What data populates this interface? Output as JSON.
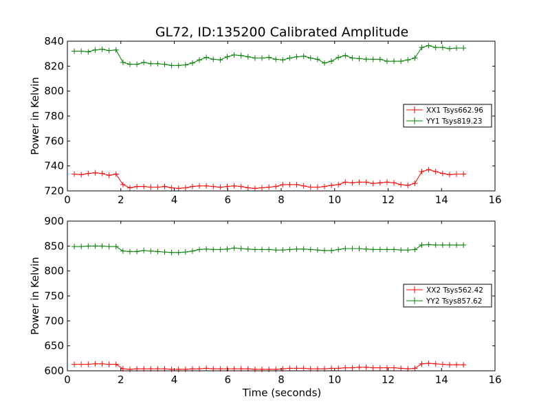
{
  "figure": {
    "title": "GL72, ID:135200 Calibrated Amplitude",
    "xlabel": "Time (seconds)"
  },
  "chart_data": [
    {
      "type": "line",
      "title": "GL72, ID:135200 Calibrated Amplitude",
      "xlabel": "",
      "ylabel": "Power in Kelvin",
      "xlim": [
        0,
        16
      ],
      "ylim": [
        720,
        840
      ],
      "xticks": [
        0,
        2,
        4,
        6,
        8,
        10,
        12,
        14,
        16
      ],
      "yticks": [
        720,
        740,
        760,
        780,
        800,
        820,
        840
      ],
      "grid": false,
      "legend_position": "center-right",
      "x": [
        0.26,
        0.52,
        0.78,
        1.04,
        1.3,
        1.56,
        1.82,
        2.08,
        2.34,
        2.6,
        2.86,
        3.12,
        3.38,
        3.64,
        3.9,
        4.16,
        4.42,
        4.68,
        4.94,
        5.2,
        5.46,
        5.72,
        5.98,
        6.24,
        6.5,
        6.76,
        7.02,
        7.28,
        7.54,
        7.8,
        8.06,
        8.32,
        8.58,
        8.84,
        9.1,
        9.36,
        9.62,
        9.88,
        10.14,
        10.4,
        10.66,
        10.92,
        11.18,
        11.44,
        11.7,
        11.96,
        12.22,
        12.48,
        12.74,
        13.0,
        13.26,
        13.52,
        13.78,
        14.04,
        14.3,
        14.56,
        14.82
      ],
      "series": [
        {
          "name": "XX1 Tsys662.96",
          "color": "#ff0000",
          "values": [
            733.5,
            733.0,
            734.0,
            734.5,
            734.0,
            732.5,
            733.5,
            725.0,
            722.5,
            723.5,
            723.5,
            723.0,
            723.0,
            723.5,
            722.5,
            722.0,
            722.5,
            723.5,
            724.0,
            724.0,
            723.5,
            723.0,
            723.5,
            724.0,
            723.5,
            722.5,
            722.0,
            722.5,
            723.0,
            723.5,
            725.0,
            725.0,
            725.0,
            724.0,
            723.0,
            723.0,
            723.5,
            724.5,
            725.0,
            727.0,
            726.5,
            727.0,
            727.0,
            726.0,
            726.5,
            727.0,
            726.5,
            725.0,
            724.5,
            726.0,
            735.5,
            737.0,
            735.5,
            734.0,
            733.0,
            733.5,
            733.5
          ]
        },
        {
          "name": "YY1 Tsys819.23",
          "color": "#008000",
          "values": [
            832.0,
            832.0,
            831.5,
            833.0,
            833.5,
            832.5,
            833.0,
            823.0,
            821.5,
            821.5,
            823.0,
            822.0,
            822.0,
            821.5,
            820.5,
            820.5,
            821.0,
            822.5,
            825.0,
            827.0,
            825.5,
            825.0,
            827.5,
            829.0,
            828.5,
            827.5,
            826.5,
            826.5,
            827.0,
            825.5,
            825.0,
            826.5,
            827.5,
            828.0,
            826.5,
            825.5,
            822.5,
            824.0,
            827.0,
            828.5,
            826.5,
            826.0,
            825.5,
            825.5,
            825.5,
            824.0,
            824.0,
            824.0,
            825.0,
            826.5,
            835.0,
            836.5,
            835.0,
            835.0,
            834.0,
            834.5,
            834.5
          ]
        }
      ]
    },
    {
      "type": "line",
      "title": "",
      "xlabel": "Time (seconds)",
      "ylabel": "Power in Kelvin",
      "xlim": [
        0,
        16
      ],
      "ylim": [
        600,
        900
      ],
      "xticks": [
        0,
        2,
        4,
        6,
        8,
        10,
        12,
        14,
        16
      ],
      "yticks": [
        600,
        650,
        700,
        750,
        800,
        850,
        900
      ],
      "grid": false,
      "legend_position": "center-right",
      "x": [
        0.26,
        0.52,
        0.78,
        1.04,
        1.3,
        1.56,
        1.82,
        2.08,
        2.34,
        2.6,
        2.86,
        3.12,
        3.38,
        3.64,
        3.9,
        4.16,
        4.42,
        4.68,
        4.94,
        5.2,
        5.46,
        5.72,
        5.98,
        6.24,
        6.5,
        6.76,
        7.02,
        7.28,
        7.54,
        7.8,
        8.06,
        8.32,
        8.58,
        8.84,
        9.1,
        9.36,
        9.62,
        9.88,
        10.14,
        10.4,
        10.66,
        10.92,
        11.18,
        11.44,
        11.7,
        11.96,
        12.22,
        12.48,
        12.74,
        13.0,
        13.26,
        13.52,
        13.78,
        14.04,
        14.3,
        14.56,
        14.82
      ],
      "series": [
        {
          "name": "XX2 Tsys562.42",
          "color": "#ff0000",
          "values": [
            613,
            613,
            613,
            614,
            614,
            613,
            613,
            604,
            603,
            604,
            604,
            604,
            604,
            604,
            603,
            603,
            603,
            604,
            604,
            605,
            604,
            604,
            604,
            604,
            604,
            604,
            603,
            603,
            603,
            603,
            604,
            605,
            605,
            605,
            604,
            604,
            604,
            605,
            605,
            606,
            606,
            607,
            607,
            606,
            606,
            606,
            606,
            605,
            604,
            605,
            614,
            615,
            614,
            613,
            612,
            612,
            612
          ]
        },
        {
          "name": "YY2 Tsys857.62",
          "color": "#008000",
          "values": [
            849,
            849,
            850,
            850,
            850,
            849,
            849,
            840,
            839,
            839,
            841,
            840,
            839,
            838,
            837,
            837,
            838,
            840,
            843,
            844,
            843,
            843,
            844,
            846,
            845,
            844,
            843,
            843,
            843,
            842,
            842,
            843,
            844,
            844,
            843,
            842,
            841,
            841,
            843,
            845,
            845,
            845,
            844,
            843,
            843,
            843,
            843,
            842,
            842,
            843,
            852,
            853,
            852,
            852,
            852,
            852,
            852
          ]
        }
      ]
    }
  ]
}
